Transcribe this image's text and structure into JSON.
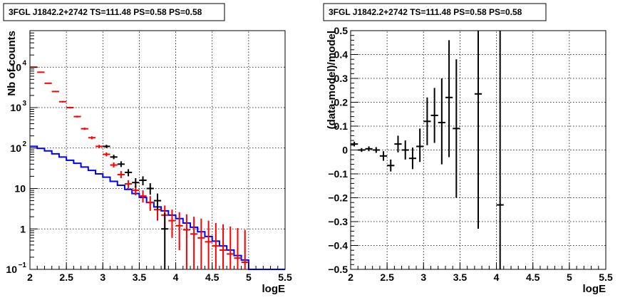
{
  "chart_data": [
    {
      "type": "scatter",
      "title": "3FGL J1842.2+2742 TS=111.48 PS=0.58 PS=0.58",
      "xlabel": "logE",
      "ylabel": "Nb of counts",
      "xlim": [
        2,
        5.5
      ],
      "ylim": [
        0.1,
        80000
      ],
      "yscale": "log",
      "grid": true,
      "x_ticks": [
        "2",
        "2.5",
        "3",
        "3.5",
        "4",
        "4.5",
        "5",
        "5.5"
      ],
      "y_ticks": [
        {
          "value": 0.1,
          "base": "10",
          "exp": "−1"
        },
        {
          "value": 1,
          "base": "1",
          "exp": ""
        },
        {
          "value": 10,
          "base": "10",
          "exp": ""
        },
        {
          "value": 100,
          "base": "10",
          "exp": "2"
        },
        {
          "value": 1000,
          "base": "10",
          "exp": "3"
        },
        {
          "value": 10000,
          "base": "10",
          "exp": "4"
        }
      ],
      "series": [
        {
          "color": "#0000ff",
          "style": "step",
          "edges": [
            2.0,
            2.1,
            2.2,
            2.3,
            2.4,
            2.5,
            2.6,
            2.7,
            2.8,
            2.9,
            3.0,
            3.1,
            3.2,
            3.3,
            3.4,
            3.5,
            3.6,
            3.7,
            3.8,
            3.9,
            4.0,
            4.1,
            4.2,
            4.3,
            4.4,
            4.5,
            4.6,
            4.7,
            4.8,
            4.9,
            5.0,
            5.1,
            5.2,
            5.3,
            5.4,
            5.5
          ],
          "values": [
            110,
            98,
            85,
            72,
            60,
            50,
            42,
            34,
            28,
            23,
            19,
            15,
            12,
            9.5,
            7.5,
            6,
            4.5,
            3.5,
            2.8,
            2.2,
            1.8,
            1.4,
            1.1,
            0.85,
            0.65,
            0.5,
            0.38,
            0.3,
            0.22,
            0.17,
            0.1,
            0.1,
            0.1,
            0.1,
            0.1
          ]
        },
        {
          "color": "#ff0000",
          "style": "errorbar",
          "points": [
            {
              "x": 2.05,
              "y": 10000,
              "lo": 9800,
              "hi": 10200
            },
            {
              "x": 2.15,
              "y": 7500,
              "lo": 7300,
              "hi": 7700
            },
            {
              "x": 2.25,
              "y": 4000,
              "lo": 3900,
              "hi": 4100
            },
            {
              "x": 2.35,
              "y": 2500,
              "lo": 2420,
              "hi": 2580
            },
            {
              "x": 2.45,
              "y": 1400,
              "lo": 1340,
              "hi": 1460
            },
            {
              "x": 2.55,
              "y": 1000,
              "lo": 950,
              "hi": 1050
            },
            {
              "x": 2.65,
              "y": 600,
              "lo": 570,
              "hi": 630
            },
            {
              "x": 2.75,
              "y": 300,
              "lo": 280,
              "hi": 320
            },
            {
              "x": 2.85,
              "y": 180,
              "lo": 165,
              "hi": 195
            },
            {
              "x": 2.95,
              "y": 110,
              "lo": 100,
              "hi": 120
            },
            {
              "x": 3.05,
              "y": 70,
              "lo": 62,
              "hi": 78
            },
            {
              "x": 3.15,
              "y": 38,
              "lo": 33,
              "hi": 44
            },
            {
              "x": 3.25,
              "y": 22,
              "lo": 18,
              "hi": 27
            },
            {
              "x": 3.35,
              "y": 13,
              "lo": 10,
              "hi": 16
            },
            {
              "x": 3.45,
              "y": 9,
              "lo": 6.8,
              "hi": 11.5
            },
            {
              "x": 3.55,
              "y": 6.5,
              "lo": 4.5,
              "hi": 9
            },
            {
              "x": 3.65,
              "y": 4.5,
              "lo": 2.8,
              "hi": 6.5
            },
            {
              "x": 3.75,
              "y": 3,
              "lo": 1.6,
              "hi": 4.8
            },
            {
              "x": 3.85,
              "y": 2.2,
              "lo": 1.0,
              "hi": 3.8
            },
            {
              "x": 3.95,
              "y": 1.6,
              "lo": 0.6,
              "hi": 3.0
            },
            {
              "x": 4.05,
              "y": 1.2,
              "lo": 0.3,
              "hi": 2.6
            },
            {
              "x": 4.15,
              "y": 0.95,
              "lo": 0.1,
              "hi": 2.3
            },
            {
              "x": 4.25,
              "y": 0.75,
              "lo": 0.1,
              "hi": 2.0
            },
            {
              "x": 4.35,
              "y": 0.6,
              "lo": 0.1,
              "hi": 1.8
            },
            {
              "x": 4.45,
              "y": 0.48,
              "lo": 0.1,
              "hi": 1.6
            },
            {
              "x": 4.55,
              "y": 0.38,
              "lo": 0.1,
              "hi": 1.4
            },
            {
              "x": 4.65,
              "y": 0.3,
              "lo": 0.1,
              "hi": 1.3
            },
            {
              "x": 4.75,
              "y": 0.24,
              "lo": 0.1,
              "hi": 1.15
            },
            {
              "x": 4.85,
              "y": 0.19,
              "lo": 0.1,
              "hi": 1.05
            },
            {
              "x": 4.95,
              "y": 0.15,
              "lo": 0.1,
              "hi": 0.95
            }
          ]
        },
        {
          "color": "#000000",
          "style": "errorbar",
          "points": [
            {
              "x": 3.05,
              "y": 110,
              "lo": 100,
              "hi": 120
            },
            {
              "x": 3.15,
              "y": 60,
              "lo": 53,
              "hi": 68
            },
            {
              "x": 3.25,
              "y": 40,
              "lo": 34,
              "hi": 47
            },
            {
              "x": 3.35,
              "y": 25,
              "lo": 20,
              "hi": 30
            },
            {
              "x": 3.45,
              "y": 14,
              "lo": 10.5,
              "hi": 18
            },
            {
              "x": 3.55,
              "y": 16,
              "lo": 12,
              "hi": 20
            },
            {
              "x": 3.65,
              "y": 10,
              "lo": 7,
              "hi": 13.5
            },
            {
              "x": 3.75,
              "y": 5,
              "lo": 3,
              "hi": 7.5
            },
            {
              "x": 3.85,
              "y": 1,
              "lo": 0.1,
              "hi": 2.5
            }
          ]
        }
      ]
    },
    {
      "type": "scatter",
      "title": "3FGL J1842.2+2742 TS=111.48 PS=0.58 PS=0.58",
      "xlabel": "logE",
      "ylabel": "(data-model)/model",
      "xlim": [
        2,
        5.5
      ],
      "ylim": [
        -0.5,
        0.5
      ],
      "grid": true,
      "x_ticks": [
        "2",
        "2.5",
        "3",
        "3.5",
        "4",
        "4.5",
        "5",
        "5.5"
      ],
      "y_ticks": [
        "−0.5",
        "−0.4",
        "−0.3",
        "−0.2",
        "−0.1",
        "0",
        "0.1",
        "0.2",
        "0.3",
        "0.4",
        "0.5"
      ],
      "series": [
        {
          "color": "#000000",
          "style": "errorbar",
          "points": [
            {
              "x": 2.05,
              "y": 0.025,
              "lo": 0.015,
              "hi": 0.035
            },
            {
              "x": 2.15,
              "y": 0.0,
              "lo": -0.008,
              "hi": 0.008
            },
            {
              "x": 2.25,
              "y": 0.005,
              "lo": -0.005,
              "hi": 0.015
            },
            {
              "x": 2.35,
              "y": 0.0,
              "lo": -0.012,
              "hi": 0.012
            },
            {
              "x": 2.45,
              "y": -0.025,
              "lo": -0.045,
              "hi": -0.005
            },
            {
              "x": 2.55,
              "y": -0.065,
              "lo": -0.09,
              "hi": -0.04
            },
            {
              "x": 2.65,
              "y": 0.025,
              "lo": -0.01,
              "hi": 0.06
            },
            {
              "x": 2.75,
              "y": 0.0,
              "lo": -0.04,
              "hi": 0.04
            },
            {
              "x": 2.85,
              "y": -0.035,
              "lo": -0.08,
              "hi": 0.01
            },
            {
              "x": 2.95,
              "y": 0.015,
              "lo": -0.05,
              "hi": 0.09
            },
            {
              "x": 3.05,
              "y": 0.12,
              "lo": 0.02,
              "hi": 0.22
            },
            {
              "x": 3.15,
              "y": 0.145,
              "lo": 0.03,
              "hi": 0.26
            },
            {
              "x": 3.25,
              "y": 0.115,
              "lo": -0.06,
              "hi": 0.3
            },
            {
              "x": 3.35,
              "y": 0.22,
              "lo": -0.03,
              "hi": 0.46
            },
            {
              "x": 3.45,
              "y": 0.09,
              "lo": -0.2,
              "hi": 0.38
            },
            {
              "x": 3.75,
              "y": 0.235,
              "lo": -0.33,
              "hi": 0.5
            },
            {
              "x": 4.05,
              "y": -0.23,
              "lo": -0.5,
              "hi": 0.5
            }
          ]
        }
      ]
    }
  ]
}
